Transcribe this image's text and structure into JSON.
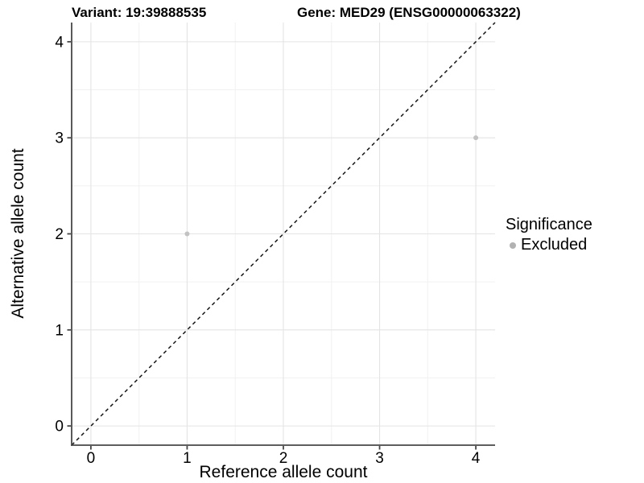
{
  "chart_data": {
    "type": "scatter",
    "title_left": "Variant: 19:39888535",
    "title_right": "Gene: MED29 (ENSG00000063322)",
    "xlabel": "Reference allele count",
    "ylabel": "Alternative allele count",
    "xlim": [
      -0.2,
      4.2
    ],
    "ylim": [
      -0.2,
      4.2
    ],
    "xticks": [
      0,
      1,
      2,
      3,
      4
    ],
    "yticks": [
      0,
      1,
      2,
      3,
      4
    ],
    "minor_xticks": [
      0.5,
      1.5,
      2.5,
      3.5
    ],
    "minor_yticks": [
      0.5,
      1.5,
      2.5,
      3.5
    ],
    "grid": "major and minor, light gray on white",
    "series": [
      {
        "name": "Excluded",
        "color": "#c2c2c2",
        "points": [
          {
            "x": 1,
            "y": 2
          },
          {
            "x": 4,
            "y": 3
          }
        ]
      }
    ],
    "reference_line": {
      "slope": 1,
      "intercept": 0,
      "style": "dashed",
      "color": "#161616"
    },
    "legend": {
      "title": "Significance",
      "position": "right",
      "items": [
        {
          "label": "Excluded",
          "color": "#b2b2b2"
        }
      ]
    }
  },
  "colors": {
    "background": "#ffffff",
    "axis_line": "#474747",
    "grid_major": "#e4e4e4",
    "grid_minor": "#f1f1f1",
    "text": "#000000"
  }
}
